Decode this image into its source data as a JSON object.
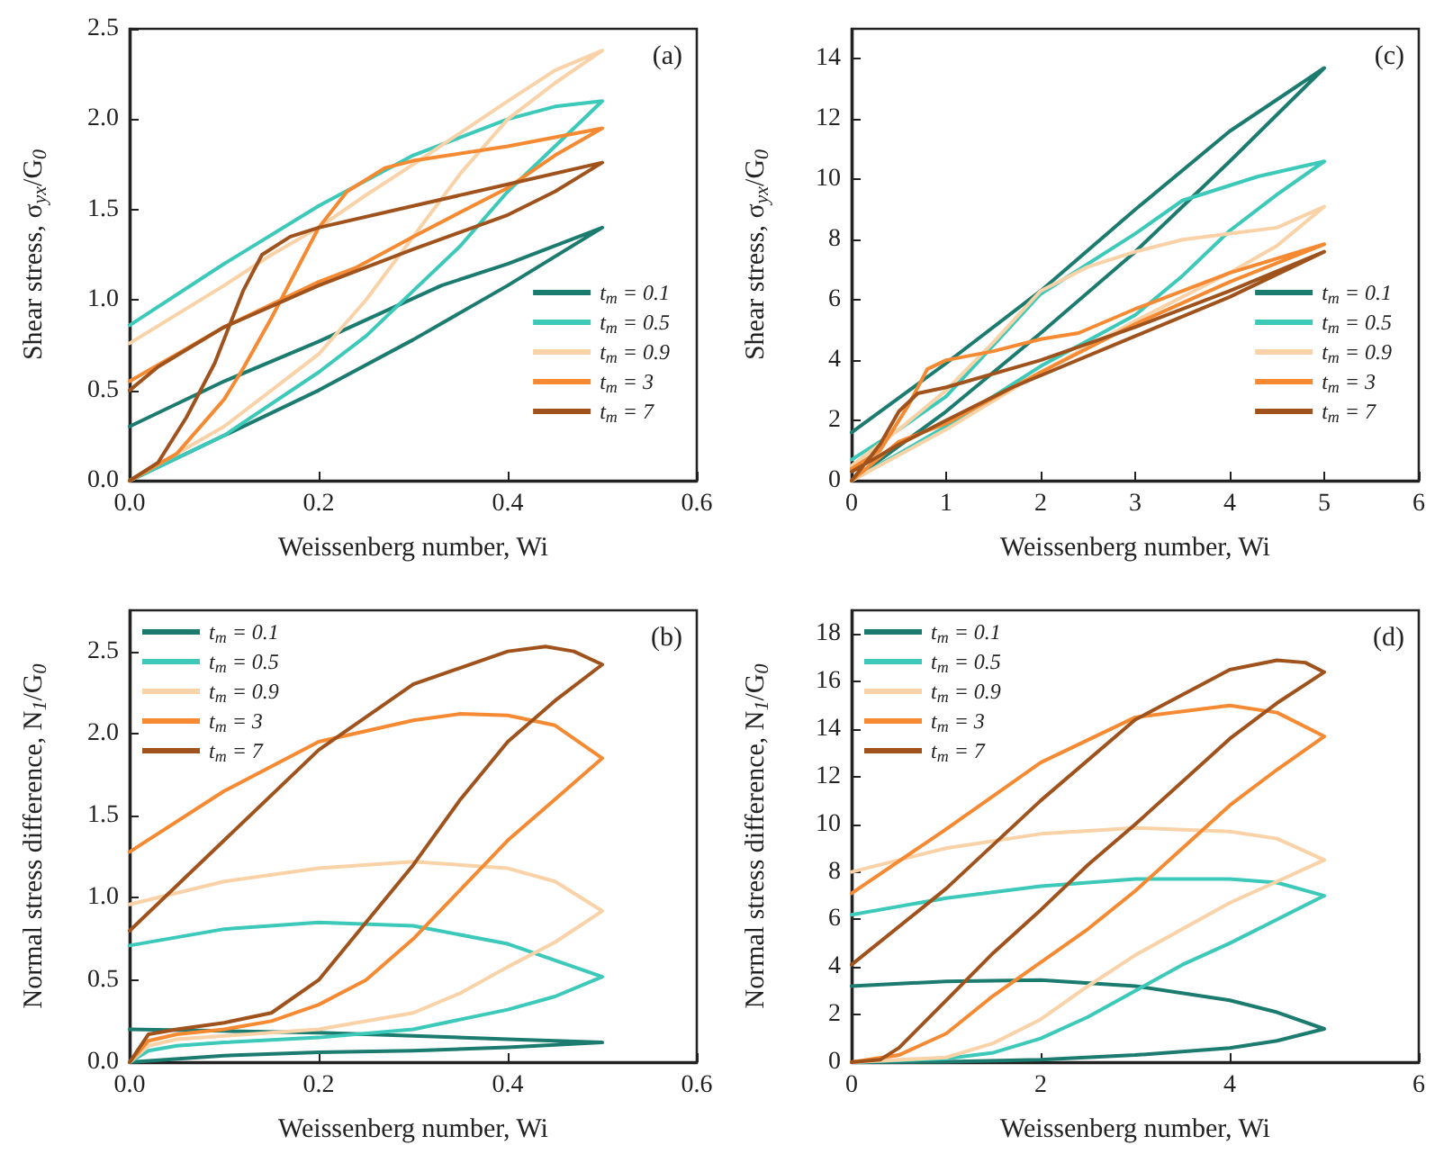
{
  "chart_data": [
    {
      "type": "line",
      "xlabel": "Weissenberg number, Wi",
      "ylabel": "Shear stress, σ$_{yx}$/G$_{0}$",
      "annotations": [
        "(a)"
      ],
      "xlim": [
        0,
        0.6
      ],
      "xticks": [
        {
          "value": 0,
          "label": "0.0"
        },
        0.2,
        0.4,
        0.6
      ],
      "ylim": [
        0,
        2.5
      ],
      "yticks": [
        {
          "value": 0,
          "label": "0.0"
        },
        0.5,
        {
          "value": 1,
          "label": "1.0"
        },
        1.5,
        {
          "value": 2,
          "label": "2.0"
        },
        2.5
      ],
      "grid": false,
      "legend": "bottom right",
      "marker": "none",
      "line_style": "solid",
      "series": [
        {
          "name": "t$_{m}$ = 0.1",
          "color": "#1b7b6f",
          "x": [
            0,
            0.1,
            0.2,
            0.3,
            0.4,
            0.5,
            0.4,
            0.33,
            0.2,
            0.1,
            0
          ],
          "values": [
            0,
            0.25,
            0.5,
            0.78,
            1.08,
            1.4,
            1.2,
            1.08,
            0.77,
            0.55,
            0.3
          ]
        },
        {
          "name": "t$_{m}$ = 0.5",
          "color": "#3cc9b9",
          "x": [
            0,
            0.1,
            0.2,
            0.25,
            0.3,
            0.35,
            0.4,
            0.45,
            0.5,
            0.45,
            0.4,
            0.3,
            0.2,
            0.1,
            0
          ],
          "values": [
            0,
            0.25,
            0.6,
            0.8,
            1.05,
            1.3,
            1.6,
            1.85,
            2.1,
            2.07,
            2.0,
            1.8,
            1.52,
            1.2,
            0.86
          ]
        },
        {
          "name": "t$_{m}$ = 0.9",
          "color": "#f9d2a8",
          "x": [
            0,
            0.1,
            0.2,
            0.25,
            0.3,
            0.35,
            0.4,
            0.45,
            0.5,
            0.45,
            0.4,
            0.3,
            0.25,
            0.2,
            0.15,
            0.1,
            0
          ],
          "values": [
            0,
            0.3,
            0.7,
            1.0,
            1.35,
            1.7,
            2.0,
            2.2,
            2.38,
            2.27,
            2.1,
            1.75,
            1.58,
            1.4,
            1.25,
            1.08,
            0.76
          ]
        },
        {
          "name": "t$_{m}$ = 3",
          "color": "#f58a33",
          "x": [
            0,
            0.05,
            0.1,
            0.12,
            0.15,
            0.18,
            0.2,
            0.23,
            0.27,
            0.3,
            0.4,
            0.5,
            0.45,
            0.4,
            0.3,
            0.24,
            0.2,
            0.1,
            0.05,
            0
          ],
          "values": [
            0,
            0.15,
            0.45,
            0.62,
            0.9,
            1.2,
            1.4,
            1.6,
            1.73,
            1.77,
            1.85,
            1.95,
            1.8,
            1.62,
            1.35,
            1.18,
            1.1,
            0.85,
            0.7,
            0.55
          ]
        },
        {
          "name": "t$_{m}$ = 7",
          "color": "#a0521c",
          "x": [
            0,
            0.03,
            0.06,
            0.09,
            0.12,
            0.14,
            0.17,
            0.2,
            0.3,
            0.4,
            0.5,
            0.45,
            0.4,
            0.3,
            0.2,
            0.1,
            0.03,
            0
          ],
          "values": [
            0,
            0.1,
            0.35,
            0.65,
            1.05,
            1.25,
            1.35,
            1.4,
            1.52,
            1.64,
            1.76,
            1.6,
            1.47,
            1.28,
            1.08,
            0.85,
            0.63,
            0.5
          ]
        }
      ]
    },
    {
      "type": "line",
      "xlabel": "Weissenberg number, Wi",
      "ylabel": "Shear stress, σ$_{yx}$/G$_{0}$",
      "annotations": [
        "(c)"
      ],
      "xlim": [
        0,
        6
      ],
      "xticks": [
        0,
        1,
        2,
        3,
        4,
        5,
        6
      ],
      "ylim": [
        0,
        15
      ],
      "yticks": [
        0,
        2,
        4,
        6,
        8,
        10,
        12,
        14
      ],
      "grid": false,
      "legend": "bottom right",
      "marker": "none",
      "line_style": "solid",
      "series": [
        {
          "name": "t$_{m}$ = 0.1",
          "color": "#1b7b6f",
          "x": [
            0,
            1,
            2,
            3,
            4,
            5,
            4,
            3,
            2,
            1,
            0
          ],
          "values": [
            0,
            2.3,
            4.9,
            7.6,
            10.6,
            13.7,
            11.6,
            9.0,
            6.3,
            3.9,
            1.6
          ]
        },
        {
          "name": "t$_{m}$ = 0.5",
          "color": "#3cc9b9",
          "x": [
            0,
            1,
            2,
            3,
            3.5,
            4,
            4.5,
            5,
            4.3,
            4,
            3.5,
            3,
            2,
            1,
            0.5,
            0
          ],
          "values": [
            0,
            1.8,
            3.8,
            5.5,
            6.8,
            8.3,
            9.5,
            10.6,
            10.1,
            9.8,
            9.3,
            8.2,
            6.2,
            2.8,
            1.7,
            0.7
          ]
        },
        {
          "name": "t$_{m}$ = 0.9",
          "color": "#f9d2a8",
          "x": [
            0,
            1,
            2,
            3,
            4,
            4.5,
            5,
            4.5,
            4,
            3.5,
            3,
            2.5,
            2,
            1.5,
            1,
            0.5,
            0
          ],
          "values": [
            0,
            1.7,
            3.6,
            5.3,
            6.9,
            7.8,
            9.1,
            8.4,
            8.2,
            8.0,
            7.6,
            7.1,
            6.3,
            4.6,
            3.0,
            1.7,
            0.5
          ]
        },
        {
          "name": "t$_{m}$ = 3",
          "color": "#f58a33",
          "x": [
            0,
            0.5,
            1,
            2,
            3,
            4,
            5,
            4,
            3,
            2.4,
            2,
            1.5,
            1,
            0.8,
            0.6,
            0.3,
            0
          ],
          "values": [
            0,
            1.3,
            1.9,
            3.6,
            5.2,
            6.6,
            7.85,
            6.9,
            5.7,
            4.9,
            4.7,
            4.3,
            4.0,
            3.7,
            2.5,
            1.0,
            0.4
          ]
        },
        {
          "name": "t$_{m}$ = 7",
          "color": "#a0521c",
          "x": [
            0,
            0.3,
            0.5,
            0.7,
            1,
            2,
            3,
            4,
            5,
            4,
            3,
            1.7,
            1,
            0.5,
            0
          ],
          "values": [
            0,
            1.2,
            2.3,
            2.9,
            3.1,
            4.0,
            5.1,
            6.3,
            7.6,
            6.1,
            4.8,
            3.1,
            2.0,
            1.2,
            0.3
          ]
        }
      ]
    },
    {
      "type": "line",
      "xlabel": "Weissenberg number, Wi",
      "ylabel": "Normal stress difference, N$_{1}$/G$_{0}$",
      "annotations": [
        "(b)"
      ],
      "xlim": [
        0,
        0.6
      ],
      "xticks": [
        {
          "value": 0,
          "label": "0.0"
        },
        0.2,
        0.4,
        0.6
      ],
      "ylim": [
        0,
        2.75
      ],
      "yticks": [
        {
          "value": 0,
          "label": "0.0"
        },
        0.5,
        {
          "value": 1,
          "label": "1.0"
        },
        1.5,
        {
          "value": 2,
          "label": "2.0"
        },
        2.5
      ],
      "grid": false,
      "legend": "top left",
      "marker": "none",
      "line_style": "solid",
      "series": [
        {
          "name": "t$_{m}$ = 0.1",
          "color": "#1b7b6f",
          "x": [
            0,
            0.1,
            0.2,
            0.3,
            0.4,
            0.5,
            0.4,
            0.3,
            0.2,
            0.1,
            0
          ],
          "values": [
            0,
            0.04,
            0.06,
            0.07,
            0.09,
            0.12,
            0.14,
            0.16,
            0.18,
            0.19,
            0.2
          ]
        },
        {
          "name": "t$_{m}$ = 0.5",
          "color": "#3cc9b9",
          "x": [
            0,
            0.02,
            0.05,
            0.1,
            0.2,
            0.3,
            0.4,
            0.45,
            0.5,
            0.45,
            0.4,
            0.3,
            0.2,
            0.1,
            0
          ],
          "values": [
            0,
            0.07,
            0.1,
            0.12,
            0.15,
            0.2,
            0.32,
            0.4,
            0.52,
            0.62,
            0.72,
            0.83,
            0.85,
            0.81,
            0.71
          ]
        },
        {
          "name": "t$_{m}$ = 0.9",
          "color": "#f9d2a8",
          "x": [
            0,
            0.02,
            0.05,
            0.1,
            0.2,
            0.3,
            0.35,
            0.4,
            0.45,
            0.5,
            0.45,
            0.4,
            0.3,
            0.2,
            0.1,
            0
          ],
          "values": [
            0,
            0.1,
            0.14,
            0.16,
            0.2,
            0.3,
            0.42,
            0.58,
            0.73,
            0.92,
            1.1,
            1.18,
            1.22,
            1.18,
            1.1,
            0.96
          ]
        },
        {
          "name": "t$_{m}$ = 3",
          "color": "#f58a33",
          "x": [
            0,
            0.02,
            0.05,
            0.1,
            0.15,
            0.2,
            0.25,
            0.3,
            0.35,
            0.4,
            0.45,
            0.5,
            0.45,
            0.4,
            0.35,
            0.3,
            0.2,
            0.1,
            0
          ],
          "values": [
            0,
            0.13,
            0.17,
            0.2,
            0.25,
            0.35,
            0.5,
            0.75,
            1.05,
            1.35,
            1.6,
            1.85,
            2.05,
            2.11,
            2.12,
            2.08,
            1.95,
            1.65,
            1.28
          ]
        },
        {
          "name": "t$_{m}$ = 7",
          "color": "#a0521c",
          "x": [
            0,
            0.02,
            0.05,
            0.1,
            0.15,
            0.2,
            0.25,
            0.3,
            0.35,
            0.4,
            0.45,
            0.5,
            0.47,
            0.44,
            0.4,
            0.3,
            0.2,
            0.1,
            0
          ],
          "values": [
            0,
            0.17,
            0.2,
            0.24,
            0.3,
            0.5,
            0.85,
            1.2,
            1.6,
            1.95,
            2.2,
            2.42,
            2.5,
            2.53,
            2.5,
            2.3,
            1.9,
            1.35,
            0.8
          ]
        }
      ]
    },
    {
      "type": "line",
      "xlabel": "Weissenberg number, Wi",
      "ylabel": "Normal stress difference, N$_{1}$/G$_{0}$",
      "annotations": [
        "(d)"
      ],
      "xlim": [
        0,
        6
      ],
      "xticks": [
        0,
        2,
        4,
        6
      ],
      "ylim": [
        0,
        19
      ],
      "yticks": [
        0,
        2,
        4,
        6,
        8,
        10,
        12,
        14,
        16,
        18
      ],
      "grid": false,
      "legend": "top left",
      "marker": "none",
      "line_style": "solid",
      "series": [
        {
          "name": "t$_{m}$ = 0.1",
          "color": "#1b7b6f",
          "x": [
            0,
            1,
            2,
            3,
            4,
            4.5,
            5,
            4.5,
            4,
            3,
            2,
            1,
            0
          ],
          "values": [
            0,
            0.02,
            0.1,
            0.3,
            0.6,
            0.9,
            1.4,
            2.1,
            2.6,
            3.2,
            3.45,
            3.4,
            3.2
          ]
        },
        {
          "name": "t$_{m}$ = 0.5",
          "color": "#3cc9b9",
          "x": [
            0,
            1,
            1.5,
            2,
            2.5,
            3,
            3.5,
            4,
            4.5,
            5,
            4.5,
            4,
            3,
            2,
            1,
            0
          ],
          "values": [
            0,
            0.15,
            0.4,
            1.0,
            1.9,
            3.0,
            4.1,
            5.0,
            6.0,
            7.0,
            7.55,
            7.7,
            7.7,
            7.4,
            6.9,
            6.2
          ]
        },
        {
          "name": "t$_{m}$ = 0.9",
          "color": "#f9d2a8",
          "x": [
            0,
            1,
            1.5,
            2,
            2.5,
            3,
            3.5,
            4,
            4.5,
            5,
            4.5,
            4,
            3,
            2,
            1,
            0
          ],
          "values": [
            0,
            0.2,
            0.8,
            1.8,
            3.2,
            4.5,
            5.6,
            6.7,
            7.6,
            8.5,
            9.4,
            9.7,
            9.85,
            9.6,
            9.0,
            8.0
          ]
        },
        {
          "name": "t$_{m}$ = 3",
          "color": "#f58a33",
          "x": [
            0,
            0.5,
            1,
            1.5,
            2,
            2.5,
            3,
            3.5,
            4,
            4.5,
            5,
            4.5,
            4,
            3,
            2,
            1,
            0
          ],
          "values": [
            0,
            0.3,
            1.2,
            2.8,
            4.2,
            5.6,
            7.2,
            9.0,
            10.8,
            12.3,
            13.7,
            14.7,
            15.0,
            14.5,
            12.6,
            9.8,
            7.1
          ]
        },
        {
          "name": "t$_{m}$ = 7",
          "color": "#a0521c",
          "x": [
            0,
            0.3,
            0.5,
            1,
            1.5,
            2,
            2.5,
            3,
            3.5,
            4,
            4.5,
            5,
            4.8,
            4.5,
            4,
            3,
            2,
            1,
            0
          ],
          "values": [
            0,
            0.1,
            0.6,
            2.6,
            4.6,
            6.4,
            8.3,
            10.0,
            11.8,
            13.6,
            15.1,
            16.4,
            16.8,
            16.9,
            16.5,
            14.4,
            11.0,
            7.3,
            4.1
          ]
        }
      ]
    }
  ]
}
